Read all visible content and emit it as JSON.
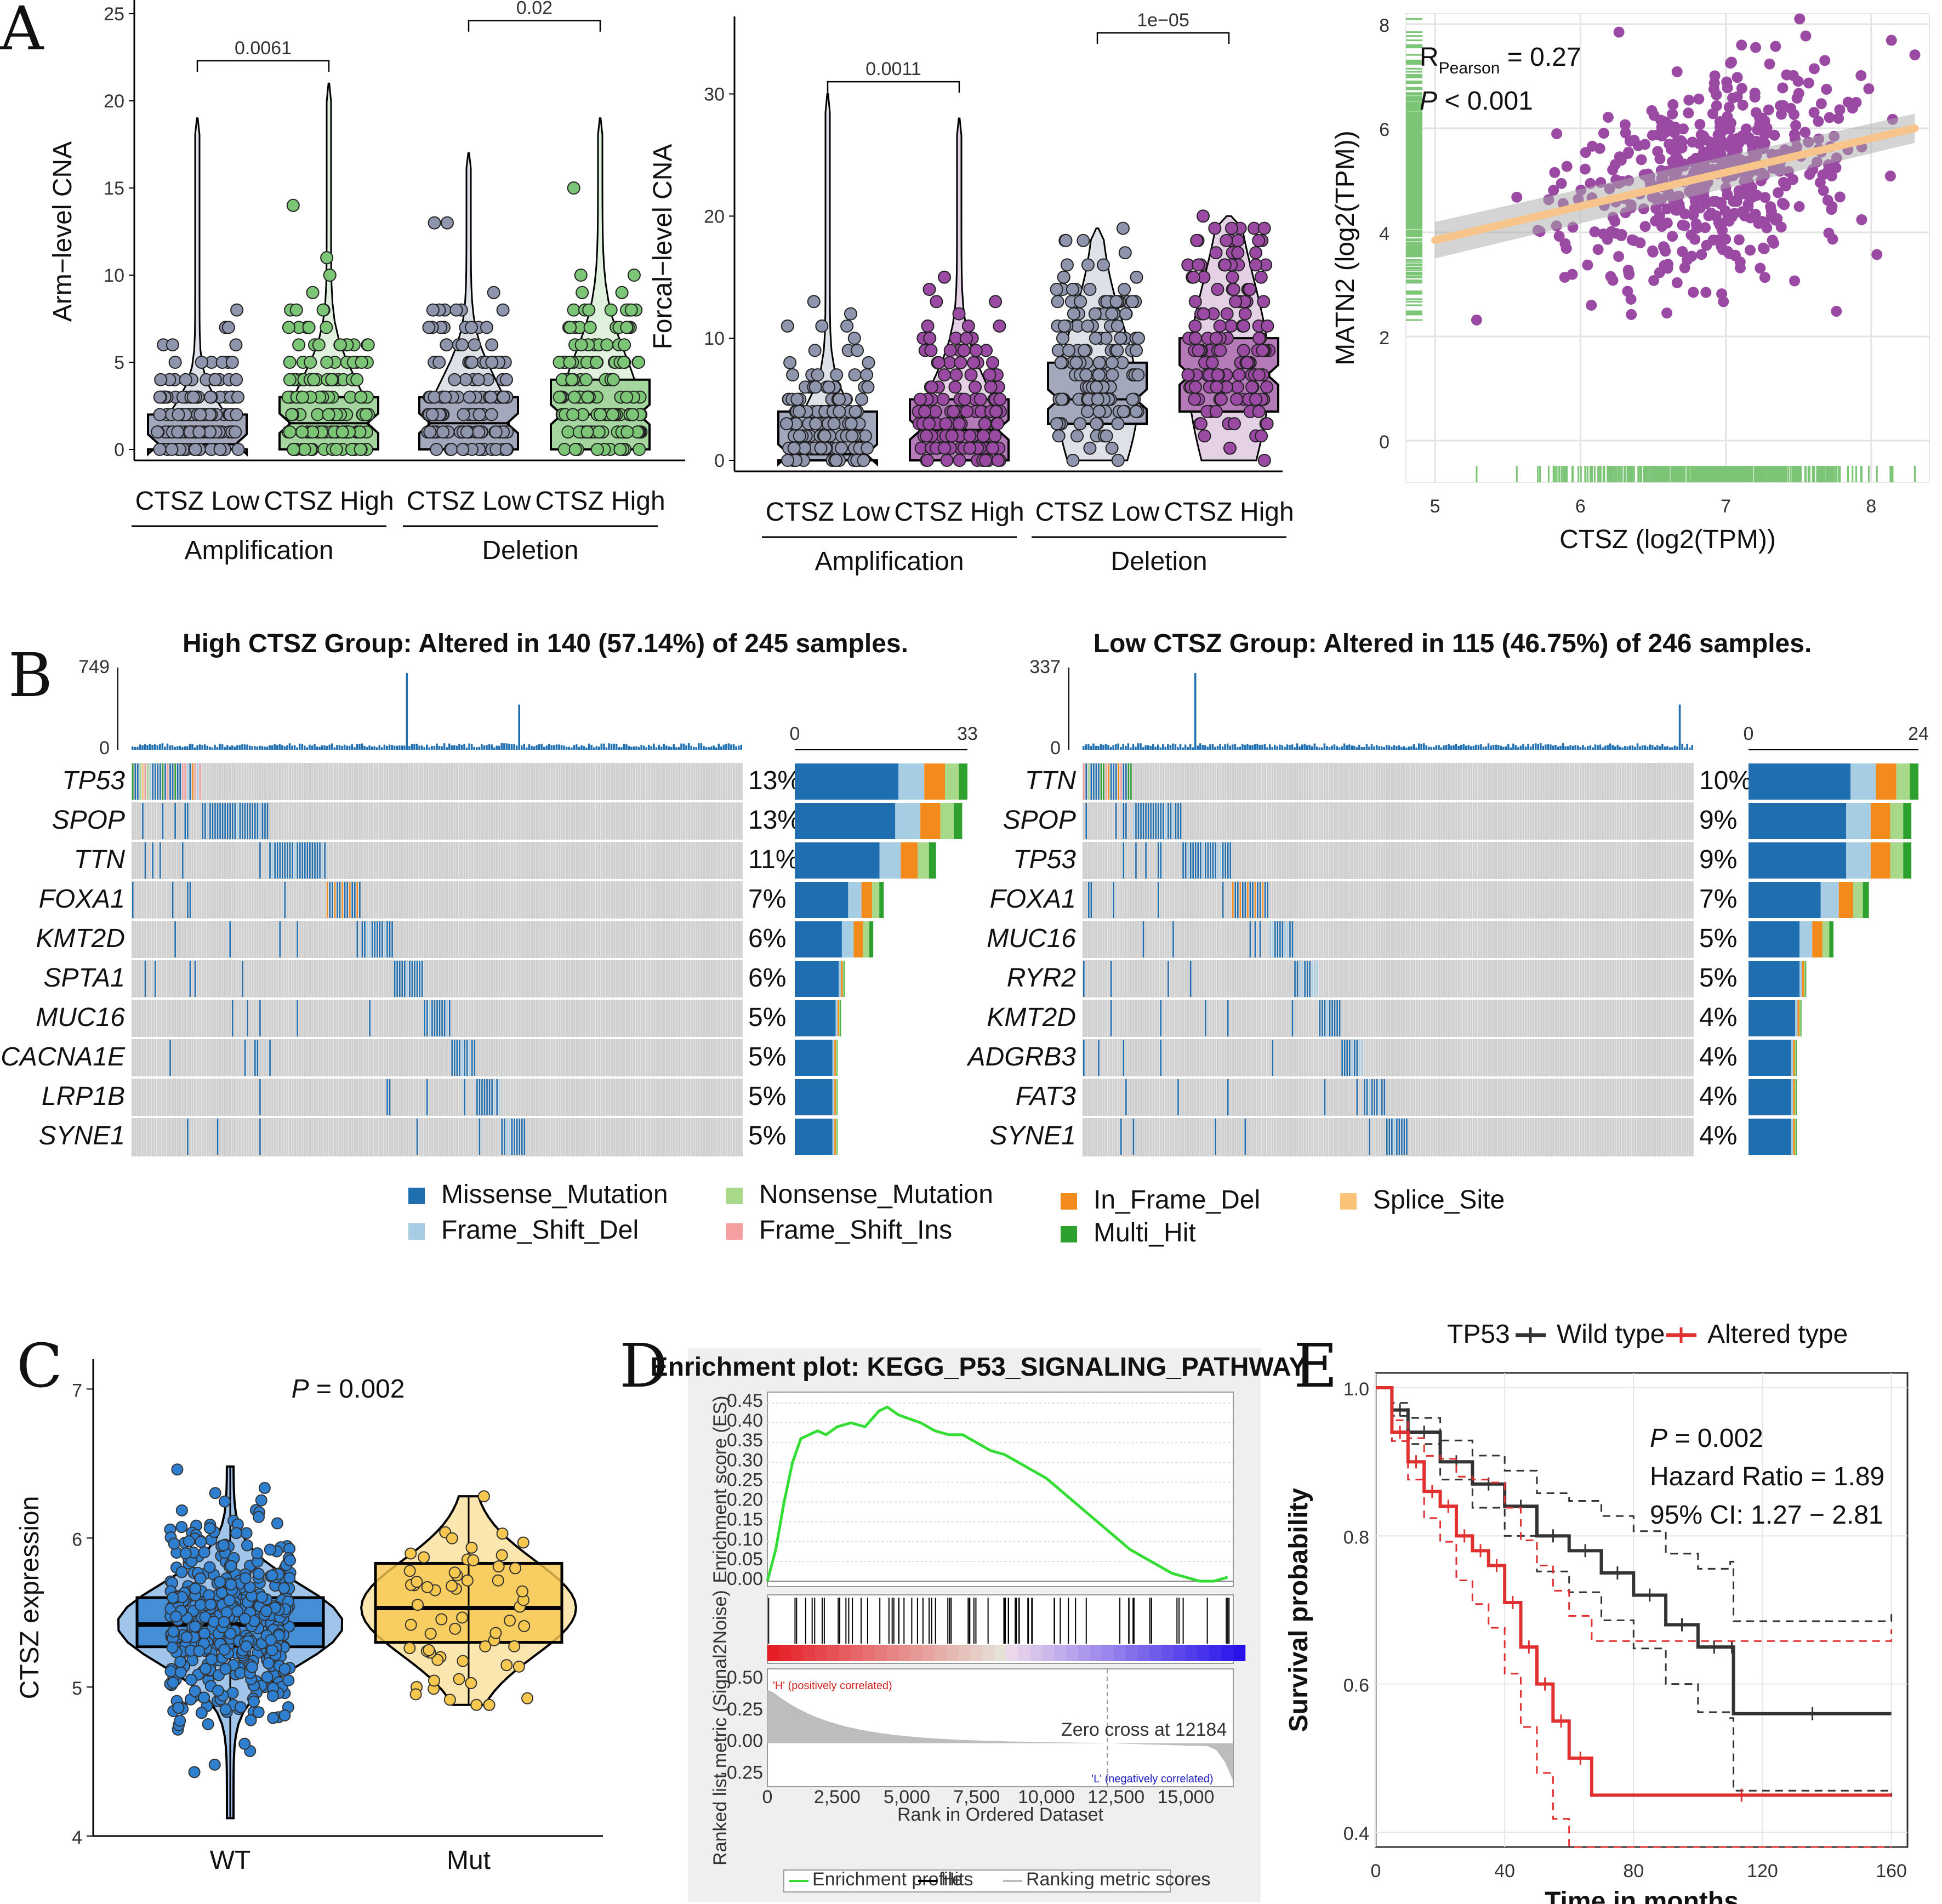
{
  "panels": {
    "A": "A",
    "B": "B",
    "C": "C",
    "D": "D",
    "E": "E"
  },
  "chart_data": [
    {
      "id": "A1",
      "type": "box",
      "ylabel": "Arm−level CNA",
      "ylim": [
        0,
        25
      ],
      "yticks": [
        0,
        5,
        10,
        15,
        20,
        25
      ],
      "categories": [
        "CTSZ Low",
        "CTSZ High",
        "CTSZ Low",
        "CTSZ High"
      ],
      "groups": [
        "Amplification",
        "Deletion"
      ],
      "colors": [
        "#a3a8bd",
        "#a5d6a0",
        "#a3a8bd",
        "#a5d6a0"
      ],
      "dot_colors": [
        "#8e95ad",
        "#7cc576",
        "#8e95ad",
        "#7cc576"
      ],
      "boxes": [
        {
          "q1": 0,
          "median": 0.3,
          "q3": 2,
          "max": 19
        },
        {
          "q1": 0,
          "median": 1.5,
          "q3": 3,
          "max": 21
        },
        {
          "q1": 0,
          "median": 1.5,
          "q3": 3,
          "max": 17
        },
        {
          "q1": 0,
          "median": 2,
          "q3": 4,
          "max": 19
        }
      ],
      "pvalues": [
        {
          "text": "0.0061",
          "from": 0,
          "to": 1,
          "y": 22.3
        },
        {
          "text": "0.02",
          "from": 2,
          "to": 3,
          "y": 24.6
        }
      ]
    },
    {
      "id": "A2",
      "type": "box",
      "ylabel": "Forcal−level CNA",
      "ylim": [
        0,
        35
      ],
      "yticks": [
        0,
        10,
        20,
        30
      ],
      "categories": [
        "CTSZ Low",
        "CTSZ High",
        "CTSZ Low",
        "CTSZ High"
      ],
      "groups": [
        "Amplification",
        "Deletion"
      ],
      "colors": [
        "#a3a8bd",
        "#b57bb8",
        "#a3a8bd",
        "#b57bb8"
      ],
      "dot_colors": [
        "#8e95ad",
        "#9b4aa3",
        "#8e95ad",
        "#9b4aa3"
      ],
      "boxes": [
        {
          "q1": 0,
          "median": 0.5,
          "q3": 4,
          "max": 30
        },
        {
          "q1": 0,
          "median": 2.5,
          "q3": 5,
          "max": 28
        },
        {
          "q1": 3,
          "median": 5,
          "q3": 8,
          "max": 19
        },
        {
          "q1": 4,
          "median": 7,
          "q3": 10,
          "max": 20
        }
      ],
      "pvalues": [
        {
          "text": "0.0011",
          "from": 0,
          "to": 1,
          "y": 31
        },
        {
          "text": "1e−05",
          "from": 2,
          "to": 3,
          "y": 35
        }
      ]
    },
    {
      "id": "A3",
      "type": "scatter",
      "xlabel": "CTSZ (log2(TPM))",
      "ylabel": "MATN2 (log2(TPM))",
      "xlim": [
        4.8,
        8.4
      ],
      "ylim": [
        -0.8,
        8.2
      ],
      "xticks": [
        5,
        6,
        7,
        8
      ],
      "yticks": [
        0,
        2,
        4,
        6,
        8
      ],
      "fit": {
        "x0": 5,
        "y0": 3.85,
        "x1": 8.3,
        "y1": 6.0
      },
      "annotation_r": "R",
      "annotation_r_sub": "Pearson",
      "annotation_r_val": "= 0.27",
      "annotation_p": "P",
      "annotation_p_val": "< 0.001",
      "point_color": "#9b4aa3",
      "fit_color": "#f7c48b",
      "rug_color": "#7cc576"
    },
    {
      "id": "B1",
      "type": "oncoplot",
      "title": "High CTSZ Group: Altered in 140 (57.14%) of 245 samples.",
      "tmb_max": "749",
      "tmb_min": "0",
      "bar_max": "33",
      "bar_min": "0",
      "genes": [
        "TP53",
        "SPOP",
        "TTN",
        "FOXA1",
        "KMT2D",
        "SPTA1",
        "MUC16",
        "CACNA1E",
        "LRP1B",
        "SYNE1"
      ],
      "percents": [
        "13%",
        "13%",
        "11%",
        "7%",
        "6%",
        "6%",
        "5%",
        "5%",
        "5%",
        "5%"
      ],
      "counts": [
        33,
        32,
        27,
        17,
        15,
        14,
        13,
        12,
        12,
        12
      ]
    },
    {
      "id": "B2",
      "type": "oncoplot",
      "title": "Low CTSZ Group: Altered in 115 (46.75%) of 246 samples.",
      "tmb_max": "337",
      "tmb_min": "0",
      "bar_max": "24",
      "bar_min": "0",
      "genes": [
        "TTN",
        "SPOP",
        "TP53",
        "FOXA1",
        "MUC16",
        "RYR2",
        "KMT2D",
        "ADGRB3",
        "FAT3",
        "SYNE1"
      ],
      "percents": [
        "10%",
        "9%",
        "9%",
        "7%",
        "5%",
        "5%",
        "4%",
        "4%",
        "4%",
        "4%"
      ],
      "counts": [
        24,
        23,
        23,
        17,
        12,
        12,
        11,
        10,
        10,
        10
      ]
    },
    {
      "id": "C",
      "type": "violin",
      "ylabel": "CTSZ expression",
      "ylim": [
        4,
        7.2
      ],
      "yticks": [
        4,
        5,
        6,
        7
      ],
      "categories": [
        "WT",
        "Mut"
      ],
      "colors": [
        "#2f7fd0",
        "#f7c84f"
      ],
      "boxes": [
        {
          "q1": 5.27,
          "median": 5.42,
          "q3": 5.6
        },
        {
          "q1": 5.3,
          "median": 5.53,
          "q3": 5.83
        }
      ],
      "pvalue_label": "P",
      "pvalue_val": "= 0.002"
    },
    {
      "id": "D",
      "type": "line",
      "title": "Enrichment plot: KEGG_P53_SIGNALING_PATHWAY",
      "ylabel_top": "Enrichment score (ES)",
      "ylabel_bottom": "Ranked list metric (Signal2Noise)",
      "xlabel": "Rank in Ordered Dataset",
      "xticks": [
        "0",
        "2,500",
        "5,000",
        "7,500",
        "10,000",
        "12,500",
        "15,000"
      ],
      "es_ticks": [
        "0.45",
        "0.40",
        "0.35",
        "0.30",
        "0.25",
        "0.20",
        "0.15",
        "0.10",
        "0.05",
        "0.00"
      ],
      "metric_ticks": [
        "0.50",
        "0.25",
        "0.00",
        "-0.25"
      ],
      "pos_label": "'H' (positively correlated)",
      "neg_label": "'L' (negatively correlated)",
      "zero_cross": "Zero cross at 12184",
      "legend": [
        "Enrichment profile",
        "Hits",
        "Ranking metric scores"
      ],
      "es_x": [
        0,
        300,
        600,
        900,
        1200,
        1500,
        1800,
        2100,
        2500,
        3000,
        3500,
        4000,
        4300,
        4700,
        5100,
        5500,
        6000,
        6500,
        7000,
        7500,
        8000,
        8500,
        9000,
        9500,
        10000,
        10500,
        11000,
        11500,
        12000,
        12500,
        13000,
        13500,
        14000,
        14500,
        15000,
        15500,
        16000,
        16500
      ],
      "es_y": [
        0.0,
        0.08,
        0.2,
        0.3,
        0.36,
        0.37,
        0.38,
        0.37,
        0.39,
        0.4,
        0.39,
        0.43,
        0.44,
        0.42,
        0.41,
        0.4,
        0.38,
        0.37,
        0.37,
        0.35,
        0.33,
        0.32,
        0.3,
        0.28,
        0.26,
        0.23,
        0.2,
        0.17,
        0.14,
        0.11,
        0.08,
        0.06,
        0.04,
        0.02,
        0.01,
        0.0,
        0.0,
        0.01
      ]
    },
    {
      "id": "E",
      "type": "line",
      "xlabel": "Time in months",
      "ylabel": "Survival probability",
      "xlim": [
        0,
        165
      ],
      "ylim": [
        0.38,
        1.02
      ],
      "xticks": [
        0,
        40,
        80,
        120,
        160
      ],
      "yticks": [
        0.4,
        0.6,
        0.8,
        1.0
      ],
      "legend_title": "TP53",
      "series": [
        {
          "name": "Wild type",
          "color": "#333333",
          "x": [
            0,
            5,
            10,
            20,
            30,
            40,
            50,
            60,
            70,
            80,
            90,
            100,
            110,
            111,
            160
          ],
          "y": [
            1.0,
            0.97,
            0.94,
            0.9,
            0.87,
            0.84,
            0.8,
            0.78,
            0.75,
            0.72,
            0.68,
            0.65,
            0.65,
            0.56,
            0.56
          ]
        },
        {
          "name": "Altered type",
          "color": "#e03030",
          "x": [
            0,
            5,
            10,
            15,
            20,
            25,
            30,
            35,
            40,
            45,
            50,
            55,
            60,
            67,
            160
          ],
          "y": [
            1.0,
            0.94,
            0.9,
            0.86,
            0.84,
            0.8,
            0.78,
            0.76,
            0.71,
            0.65,
            0.6,
            0.55,
            0.5,
            0.45,
            0.45
          ]
        }
      ],
      "pvalue_label": "P",
      "pvalue_val": "= 0.002",
      "hr_text": "Hazard Ratio = 1.89",
      "ci_text": "95% CI: 1.27 − 2.81"
    }
  ],
  "legend_B": [
    {
      "name": "Missense_Mutation",
      "color": "#1f6fb0"
    },
    {
      "name": "Nonsense_Mutation",
      "color": "#a8d98a"
    },
    {
      "name": "In_Frame_Del",
      "color": "#f28a1c"
    },
    {
      "name": "Splice_Site",
      "color": "#fbc27a"
    },
    {
      "name": "Frame_Shift_Del",
      "color": "#a6cde3"
    },
    {
      "name": "Frame_Shift_Ins",
      "color": "#f4a0a0"
    },
    {
      "name": "Multi_Hit",
      "color": "#2ea02e"
    }
  ]
}
